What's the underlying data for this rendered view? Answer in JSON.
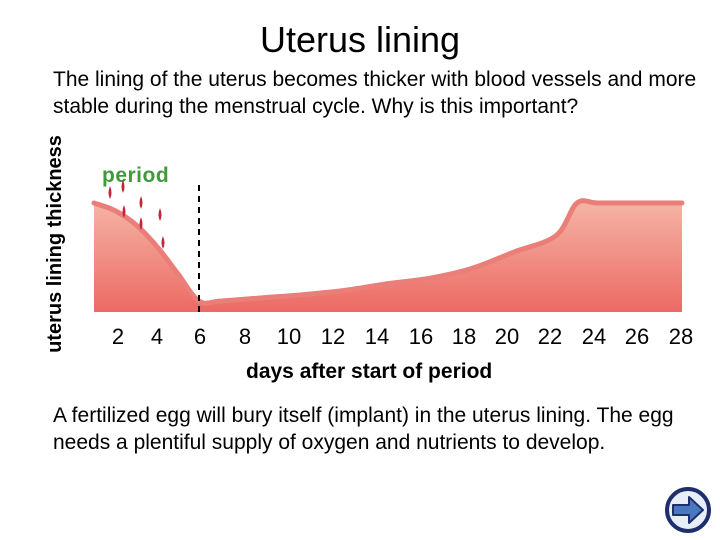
{
  "title": "Uterus lining",
  "intro_text": "The lining of the uterus becomes thicker with blood vessels and more stable during the menstrual cycle. Why is this important?",
  "period_label": "period",
  "body_text": "A fertilized egg will bury itself (implant) in the uterus lining. The egg needs a plentiful supply of oxygen and nutrients to develop.",
  "nav": {
    "icon": "right-arrow-icon"
  },
  "colors": {
    "fill_top": "#f5b5a6",
    "fill_bottom": "#ec6a64",
    "line": "#ea7e78",
    "blood": "#c0283a",
    "period_label": "#3f9a3c",
    "nav_fill": "#4a78c0",
    "nav_ring": "#1f2f6e"
  },
  "chart_data": {
    "type": "area",
    "title": "",
    "xlabel": "days after start of period",
    "ylabel": "uterus lining thickness",
    "x_ticks": [
      2,
      4,
      6,
      8,
      10,
      12,
      14,
      16,
      18,
      20,
      22,
      24,
      26,
      28
    ],
    "xlim": [
      0,
      28
    ],
    "ylim": [
      0,
      1
    ],
    "period_end_day": 5,
    "series": [
      {
        "x": [
          0,
          1,
          2,
          3,
          4,
          5,
          6,
          8,
          10,
          12,
          14,
          16,
          18,
          20,
          22,
          23,
          24,
          26,
          28
        ],
        "y": [
          1.0,
          0.93,
          0.8,
          0.6,
          0.35,
          0.1,
          0.1,
          0.13,
          0.16,
          0.2,
          0.26,
          0.31,
          0.4,
          0.55,
          0.7,
          1.0,
          1.0,
          1.0,
          1.0
        ]
      }
    ]
  }
}
